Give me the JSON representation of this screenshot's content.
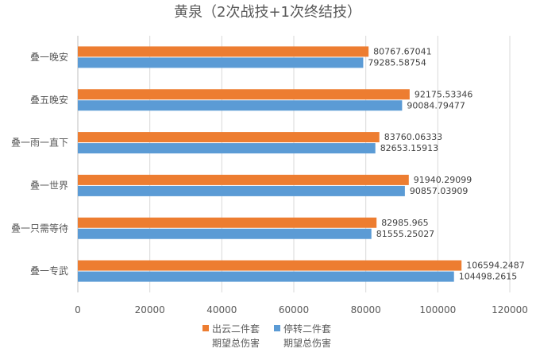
{
  "chart_data": {
    "type": "bar",
    "orientation": "horizontal",
    "title": "黄泉（2次战技+1次终结技）",
    "categories": [
      "叠一晚安",
      "叠五晚安",
      "叠一雨一直下",
      "叠一世界",
      "叠一只需等待",
      "叠一专武"
    ],
    "series": [
      {
        "name": "出云二件套期望总伤害",
        "legend_lines": [
          "出云二件套",
          "期望总伤害"
        ],
        "color": "#ED7D31",
        "values": [
          80767.67041,
          92175.53346,
          83760.06333,
          91940.29099,
          82985.965,
          106594.2487
        ],
        "labels": [
          "80767.67041",
          "92175.53346",
          "83760.06333",
          "91940.29099",
          "82985.965",
          "106594.2487"
        ]
      },
      {
        "name": "停转二件套期望总伤害",
        "legend_lines": [
          "停转二件套",
          "期望总伤害"
        ],
        "color": "#5B9BD5",
        "values": [
          79285.58754,
          90084.79477,
          82653.15913,
          90857.03909,
          81555.25027,
          104498.2615
        ],
        "labels": [
          "79285.58754",
          "90084.79477",
          "82653.15913",
          "90857.03909",
          "81555.25027",
          "104498.2615"
        ]
      }
    ],
    "xlim": [
      0,
      120000
    ],
    "xticks": [
      "0",
      "20000",
      "40000",
      "60000",
      "80000",
      "100000",
      "120000"
    ],
    "xlabel": "",
    "ylabel": "",
    "grid": true,
    "legend": "bottom"
  }
}
